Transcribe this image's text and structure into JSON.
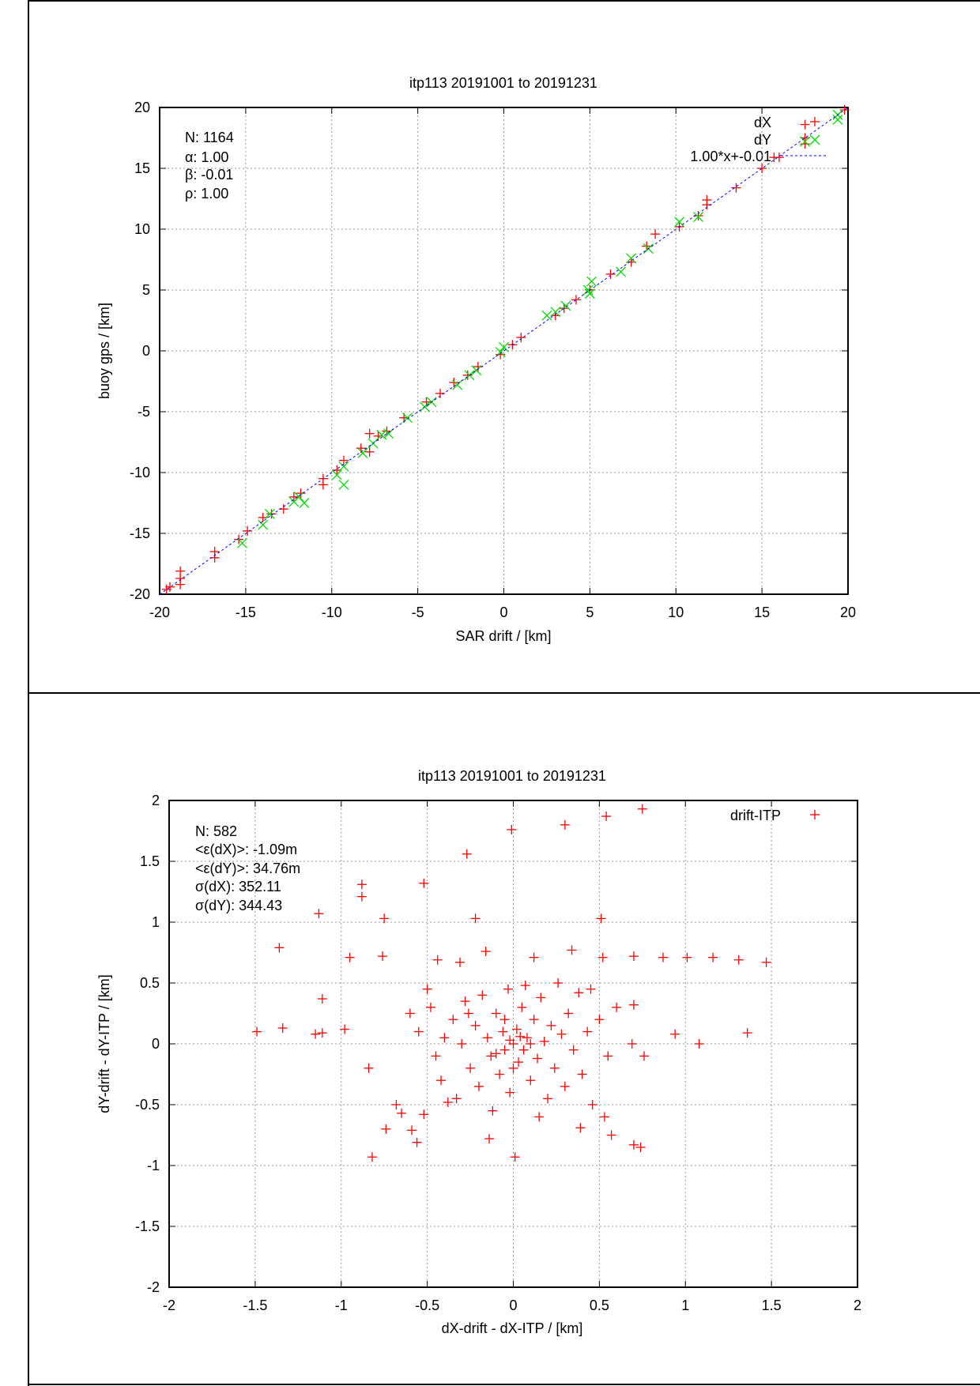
{
  "chart_data": [
    {
      "type": "scatter",
      "title": "itp113 20191001 to 20191231",
      "xlabel": "SAR drift / [km]",
      "ylabel": "buoy gps / [km]",
      "xlim": [
        -20,
        20
      ],
      "ylim": [
        -20,
        20
      ],
      "xticks": [
        "-20",
        "-15",
        "-10",
        "-5",
        "0",
        "5",
        "10",
        "15",
        "20"
      ],
      "yticks": [
        "-20",
        "-15",
        "-10",
        "-5",
        "0",
        "5",
        "10",
        "15",
        "20"
      ],
      "xtick_values": [
        -20,
        -15,
        -10,
        -5,
        0,
        5,
        10,
        15,
        20
      ],
      "ytick_values": [
        -20,
        -15,
        -10,
        -5,
        0,
        5,
        10,
        15,
        20
      ],
      "grid": true,
      "legend_position": "top-right",
      "stats": [
        "N: 1164",
        "α: 1.00",
        "β: -0.01",
        "ρ: 1.00"
      ],
      "colors": {
        "dX": "#ff0000",
        "dY": "#00dd00",
        "fit": "#0000ff"
      },
      "series": [
        {
          "name": "dX",
          "marker": "plus",
          "points": [
            [
              -19.6,
              -19.6
            ],
            [
              -19.4,
              -19.4
            ],
            [
              -18.8,
              -18.1
            ],
            [
              -18.8,
              -18.7
            ],
            [
              -18.8,
              -19.2
            ],
            [
              -16.8,
              -16.5
            ],
            [
              -16.8,
              -17.0
            ],
            [
              -15.4,
              -15.5
            ],
            [
              -14.9,
              -14.8
            ],
            [
              -14.0,
              -13.7
            ],
            [
              -13.5,
              -13.4
            ],
            [
              -12.8,
              -13.0
            ],
            [
              -12.2,
              -12.0
            ],
            [
              -11.8,
              -11.7
            ],
            [
              -10.5,
              -10.5
            ],
            [
              -10.5,
              -11.0
            ],
            [
              -9.7,
              -9.8
            ],
            [
              -9.3,
              -9.0
            ],
            [
              -8.3,
              -8.0
            ],
            [
              -7.8,
              -6.8
            ],
            [
              -7.8,
              -8.3
            ],
            [
              -7.3,
              -7.0
            ],
            [
              -6.8,
              -6.6
            ],
            [
              -5.8,
              -5.5
            ],
            [
              -4.5,
              -4.2
            ],
            [
              -3.7,
              -3.5
            ],
            [
              -2.9,
              -2.6
            ],
            [
              -2.1,
              -2.0
            ],
            [
              -1.5,
              -1.3
            ],
            [
              -0.2,
              -0.3
            ],
            [
              0.5,
              0.5
            ],
            [
              1.0,
              1.1
            ],
            [
              3.0,
              2.9
            ],
            [
              3.5,
              3.5
            ],
            [
              4.2,
              4.2
            ],
            [
              5.0,
              5.0
            ],
            [
              6.2,
              6.3
            ],
            [
              7.4,
              7.3
            ],
            [
              8.3,
              8.6
            ],
            [
              8.8,
              9.6
            ],
            [
              10.2,
              10.2
            ],
            [
              11.3,
              11.1
            ],
            [
              11.8,
              12.0
            ],
            [
              11.8,
              12.4
            ],
            [
              13.5,
              13.4
            ],
            [
              15.0,
              15.0
            ],
            [
              16.0,
              15.9
            ],
            [
              15.7,
              15.9
            ],
            [
              17.5,
              17.5
            ],
            [
              17.5,
              18.6
            ],
            [
              17.5,
              17.0
            ],
            [
              19.8,
              19.8
            ]
          ]
        },
        {
          "name": "dY",
          "marker": "cross",
          "points": [
            [
              -15.2,
              -15.8
            ],
            [
              -14.0,
              -14.3
            ],
            [
              -13.6,
              -13.4
            ],
            [
              -12.2,
              -12.4
            ],
            [
              -11.9,
              -12.0
            ],
            [
              -11.6,
              -12.5
            ],
            [
              -9.7,
              -10.2
            ],
            [
              -9.3,
              -9.5
            ],
            [
              -9.3,
              -11.0
            ],
            [
              -8.2,
              -8.4
            ],
            [
              -7.6,
              -7.6
            ],
            [
              -7.1,
              -6.9
            ],
            [
              -6.7,
              -6.8
            ],
            [
              -5.6,
              -5.5
            ],
            [
              -4.6,
              -4.6
            ],
            [
              -4.2,
              -4.2
            ],
            [
              -2.7,
              -2.8
            ],
            [
              -2.0,
              -2.0
            ],
            [
              -1.6,
              -1.6
            ],
            [
              -0.2,
              -0.1
            ],
            [
              0,
              0.3
            ],
            [
              2.5,
              2.9
            ],
            [
              3.0,
              3.2
            ],
            [
              3.6,
              3.7
            ],
            [
              4.9,
              5.0
            ],
            [
              5.1,
              5.7
            ],
            [
              5.0,
              4.7
            ],
            [
              6.8,
              6.5
            ],
            [
              7.4,
              7.6
            ],
            [
              8.4,
              8.4
            ],
            [
              10.2,
              10.6
            ],
            [
              11.3,
              11.0
            ],
            [
              17.5,
              17.2
            ],
            [
              19.4,
              19.4
            ],
            [
              19.4,
              19.0
            ]
          ]
        },
        {
          "name": "1.00*x+-0.01",
          "type": "line",
          "slope": 1.0,
          "intercept": -0.01
        }
      ]
    },
    {
      "type": "scatter",
      "title": "itp113 20191001 to 20191231",
      "xlabel": "dX-drift - dX-ITP / [km]",
      "ylabel": "dY-drift - dY-ITP / [km]",
      "xlim": [
        -2,
        2
      ],
      "ylim": [
        -2,
        2
      ],
      "xticks": [
        "-2",
        "-1.5",
        "-1",
        "-0.5",
        "0",
        "0.5",
        "1",
        "1.5",
        "2"
      ],
      "yticks": [
        "-2",
        "-1.5",
        "-1",
        "-0.5",
        "0",
        "0.5",
        "1",
        "1.5",
        "2"
      ],
      "xtick_values": [
        -2,
        -1.5,
        -1,
        -0.5,
        0,
        0.5,
        1,
        1.5,
        2
      ],
      "ytick_values": [
        -2,
        -1.5,
        -1,
        -0.5,
        0,
        0.5,
        1,
        1.5,
        2
      ],
      "grid": true,
      "legend_position": "top-right",
      "stats": [
        "N: 582",
        "<ε(dX)>:  -1.09m",
        "<ε(dY)>: 34.76m",
        "σ(dX):  352.11",
        "σ(dY):  344.43"
      ],
      "colors": {
        "drift-ITP": "#ff0000"
      },
      "series": [
        {
          "name": "drift-ITP",
          "marker": "plus",
          "points": [
            [
              0.75,
              1.93
            ],
            [
              0.54,
              1.87
            ],
            [
              0.3,
              1.8
            ],
            [
              -0.01,
              1.76
            ],
            [
              -0.27,
              1.56
            ],
            [
              -0.88,
              1.31
            ],
            [
              -0.88,
              1.21
            ],
            [
              -0.52,
              1.32
            ],
            [
              -1.13,
              1.07
            ],
            [
              -0.75,
              1.03
            ],
            [
              -0.22,
              1.03
            ],
            [
              0.51,
              1.03
            ],
            [
              -1.36,
              0.79
            ],
            [
              -0.95,
              0.71
            ],
            [
              -0.76,
              0.72
            ],
            [
              -0.44,
              0.69
            ],
            [
              -0.31,
              0.67
            ],
            [
              -0.16,
              0.76
            ],
            [
              0.12,
              0.71
            ],
            [
              0.34,
              0.77
            ],
            [
              0.52,
              0.71
            ],
            [
              0.7,
              0.72
            ],
            [
              0.87,
              0.71
            ],
            [
              1.01,
              0.71
            ],
            [
              1.16,
              0.71
            ],
            [
              1.31,
              0.69
            ],
            [
              1.47,
              0.67
            ],
            [
              -1.11,
              0.37
            ],
            [
              -1.49,
              0.1
            ],
            [
              -1.34,
              0.13
            ],
            [
              -1.15,
              0.08
            ],
            [
              -1.11,
              0.09
            ],
            [
              -0.98,
              0.12
            ],
            [
              0.94,
              0.08
            ],
            [
              1.08,
              0.0
            ],
            [
              1.36,
              0.09
            ],
            [
              0.76,
              -0.1
            ],
            [
              0.69,
              0.0
            ],
            [
              0.7,
              0.32
            ],
            [
              -0.84,
              -0.2
            ],
            [
              -0.68,
              -0.5
            ],
            [
              -0.65,
              -0.57
            ],
            [
              -0.74,
              -0.7
            ],
            [
              -0.59,
              -0.71
            ],
            [
              -0.56,
              -0.81
            ],
            [
              -0.82,
              -0.93
            ],
            [
              -0.14,
              -0.78
            ],
            [
              0.01,
              -0.93
            ],
            [
              0.39,
              -0.69
            ],
            [
              0.53,
              -0.6
            ],
            [
              0.57,
              -0.75
            ],
            [
              0.7,
              -0.83
            ],
            [
              0.74,
              -0.85
            ],
            [
              -0.52,
              -0.58
            ],
            [
              -0.6,
              0.25
            ],
            [
              -0.55,
              0.1
            ],
            [
              -0.48,
              0.3
            ],
            [
              -0.45,
              -0.1
            ],
            [
              -0.42,
              -0.3
            ],
            [
              -0.4,
              0.05
            ],
            [
              -0.35,
              0.2
            ],
            [
              -0.33,
              -0.45
            ],
            [
              -0.3,
              0.0
            ],
            [
              -0.28,
              0.35
            ],
            [
              -0.25,
              -0.2
            ],
            [
              -0.22,
              0.15
            ],
            [
              -0.2,
              -0.35
            ],
            [
              -0.18,
              0.4
            ],
            [
              -0.15,
              0.05
            ],
            [
              -0.13,
              -0.1
            ],
            [
              -0.1,
              0.25
            ],
            [
              -0.08,
              -0.25
            ],
            [
              -0.06,
              0.1
            ],
            [
              -0.05,
              -0.05
            ],
            [
              -0.03,
              0.45
            ],
            [
              -0.02,
              -0.4
            ],
            [
              0.0,
              0.0
            ],
            [
              0.02,
              0.12
            ],
            [
              0.03,
              -0.15
            ],
            [
              0.05,
              0.3
            ],
            [
              0.06,
              -0.05
            ],
            [
              0.08,
              0.05
            ],
            [
              0.1,
              -0.3
            ],
            [
              0.12,
              0.2
            ],
            [
              0.14,
              -0.12
            ],
            [
              0.16,
              0.38
            ],
            [
              0.18,
              0.02
            ],
            [
              0.2,
              -0.45
            ],
            [
              0.22,
              0.15
            ],
            [
              0.24,
              -0.2
            ],
            [
              0.26,
              0.5
            ],
            [
              0.28,
              0.08
            ],
            [
              0.3,
              -0.35
            ],
            [
              0.32,
              0.25
            ],
            [
              0.35,
              -0.05
            ],
            [
              0.38,
              0.42
            ],
            [
              0.4,
              -0.25
            ],
            [
              0.43,
              0.1
            ],
            [
              0.46,
              -0.5
            ],
            [
              0.5,
              0.2
            ],
            [
              0.55,
              -0.1
            ],
            [
              0.6,
              0.3
            ],
            [
              -0.38,
              -0.48
            ],
            [
              -0.26,
              0.25
            ],
            [
              -0.12,
              -0.55
            ],
            [
              0.07,
              0.48
            ],
            [
              0.15,
              -0.6
            ],
            [
              -0.5,
              0.45
            ],
            [
              0.45,
              0.45
            ],
            [
              -0.05,
              0.2
            ],
            [
              0.0,
              -0.2
            ],
            [
              0.1,
              0.0
            ],
            [
              -0.1,
              -0.08
            ],
            [
              0.04,
              0.06
            ],
            [
              -0.02,
              0.03
            ]
          ]
        }
      ]
    }
  ]
}
